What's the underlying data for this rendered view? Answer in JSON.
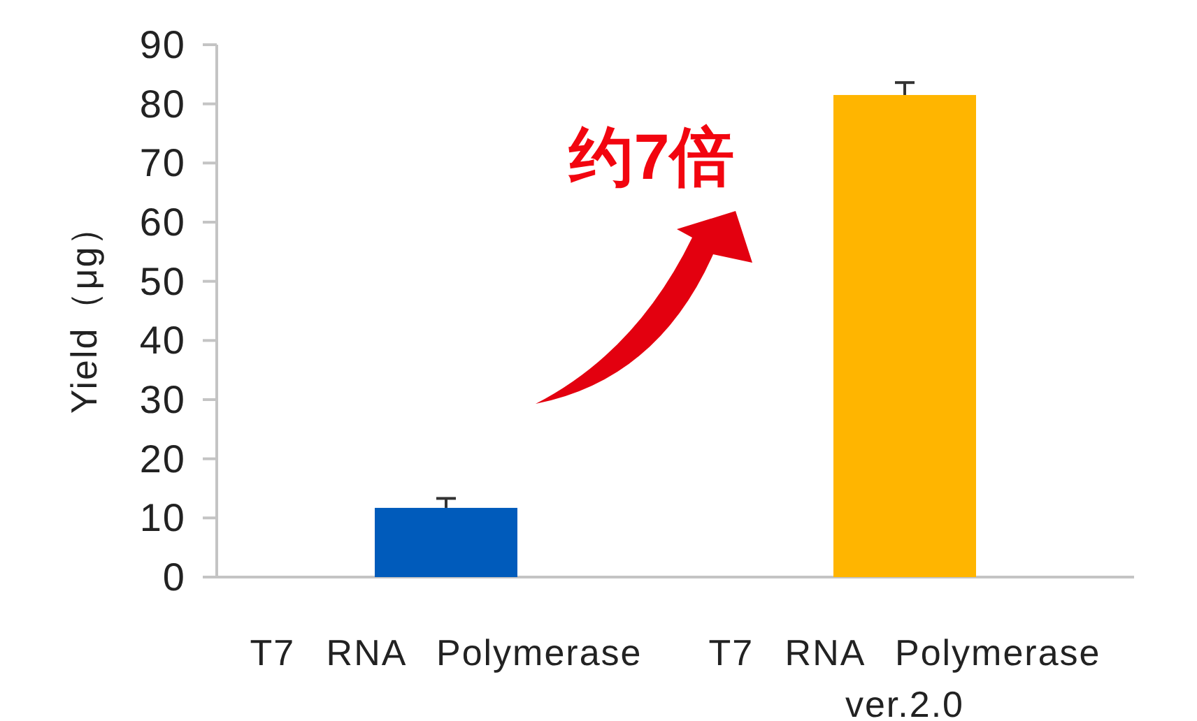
{
  "chart_data": {
    "type": "bar",
    "ylabel": "Yield（μg）",
    "categories": [
      "T7 RNA Polymerase",
      "T7 RNA Polymerase ver.2.0"
    ],
    "values": [
      11.7,
      81.5
    ],
    "colors": [
      "#005bbb",
      "#ffb500"
    ],
    "errors": [
      [
        11.7,
        13.3
      ],
      [
        81.5,
        83.6
      ]
    ],
    "ylim": [
      0,
      90
    ],
    "yticks": [
      0,
      10,
      20,
      30,
      40,
      50,
      60,
      70,
      80,
      90
    ],
    "annotations": [
      "约7倍"
    ]
  }
}
